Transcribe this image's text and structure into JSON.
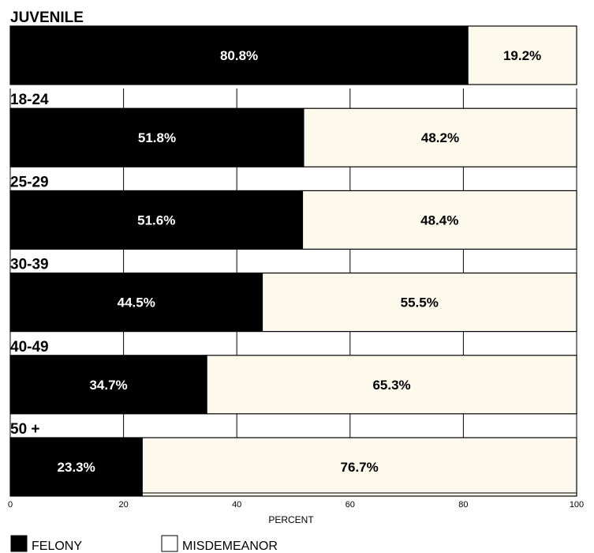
{
  "chart_data": {
    "type": "bar",
    "orientation": "horizontal",
    "stacked": true,
    "percent_stacked": true,
    "categories": [
      "JUVENILE",
      "18-24",
      "25-29",
      "30-39",
      "40-49",
      "50 +"
    ],
    "series": [
      {
        "name": "FELONY",
        "values": [
          80.8,
          51.8,
          51.6,
          44.5,
          34.7,
          23.3
        ],
        "labels": [
          "80.8%",
          "51.8%",
          "51.6%",
          "44.5%",
          "34.7%",
          "23.3%"
        ],
        "color": "#000000",
        "label_color": "#ffffff"
      },
      {
        "name": "MISDEMEANOR",
        "values": [
          19.2,
          48.2,
          48.4,
          55.5,
          65.3,
          76.7
        ],
        "labels": [
          "19.2%",
          "48.2%",
          "48.4%",
          "55.5%",
          "65.3%",
          "76.7%"
        ],
        "color": "#fdf9ec",
        "label_color": "#000000"
      }
    ],
    "xlabel": "PERCENT",
    "xlim": [
      0,
      100
    ],
    "xticks": [
      0,
      20,
      40,
      60,
      80,
      100
    ],
    "tick_labels": [
      "0",
      "20",
      "40",
      "60",
      "80",
      "100"
    ],
    "grid": true,
    "legend_position": "bottom-left"
  }
}
